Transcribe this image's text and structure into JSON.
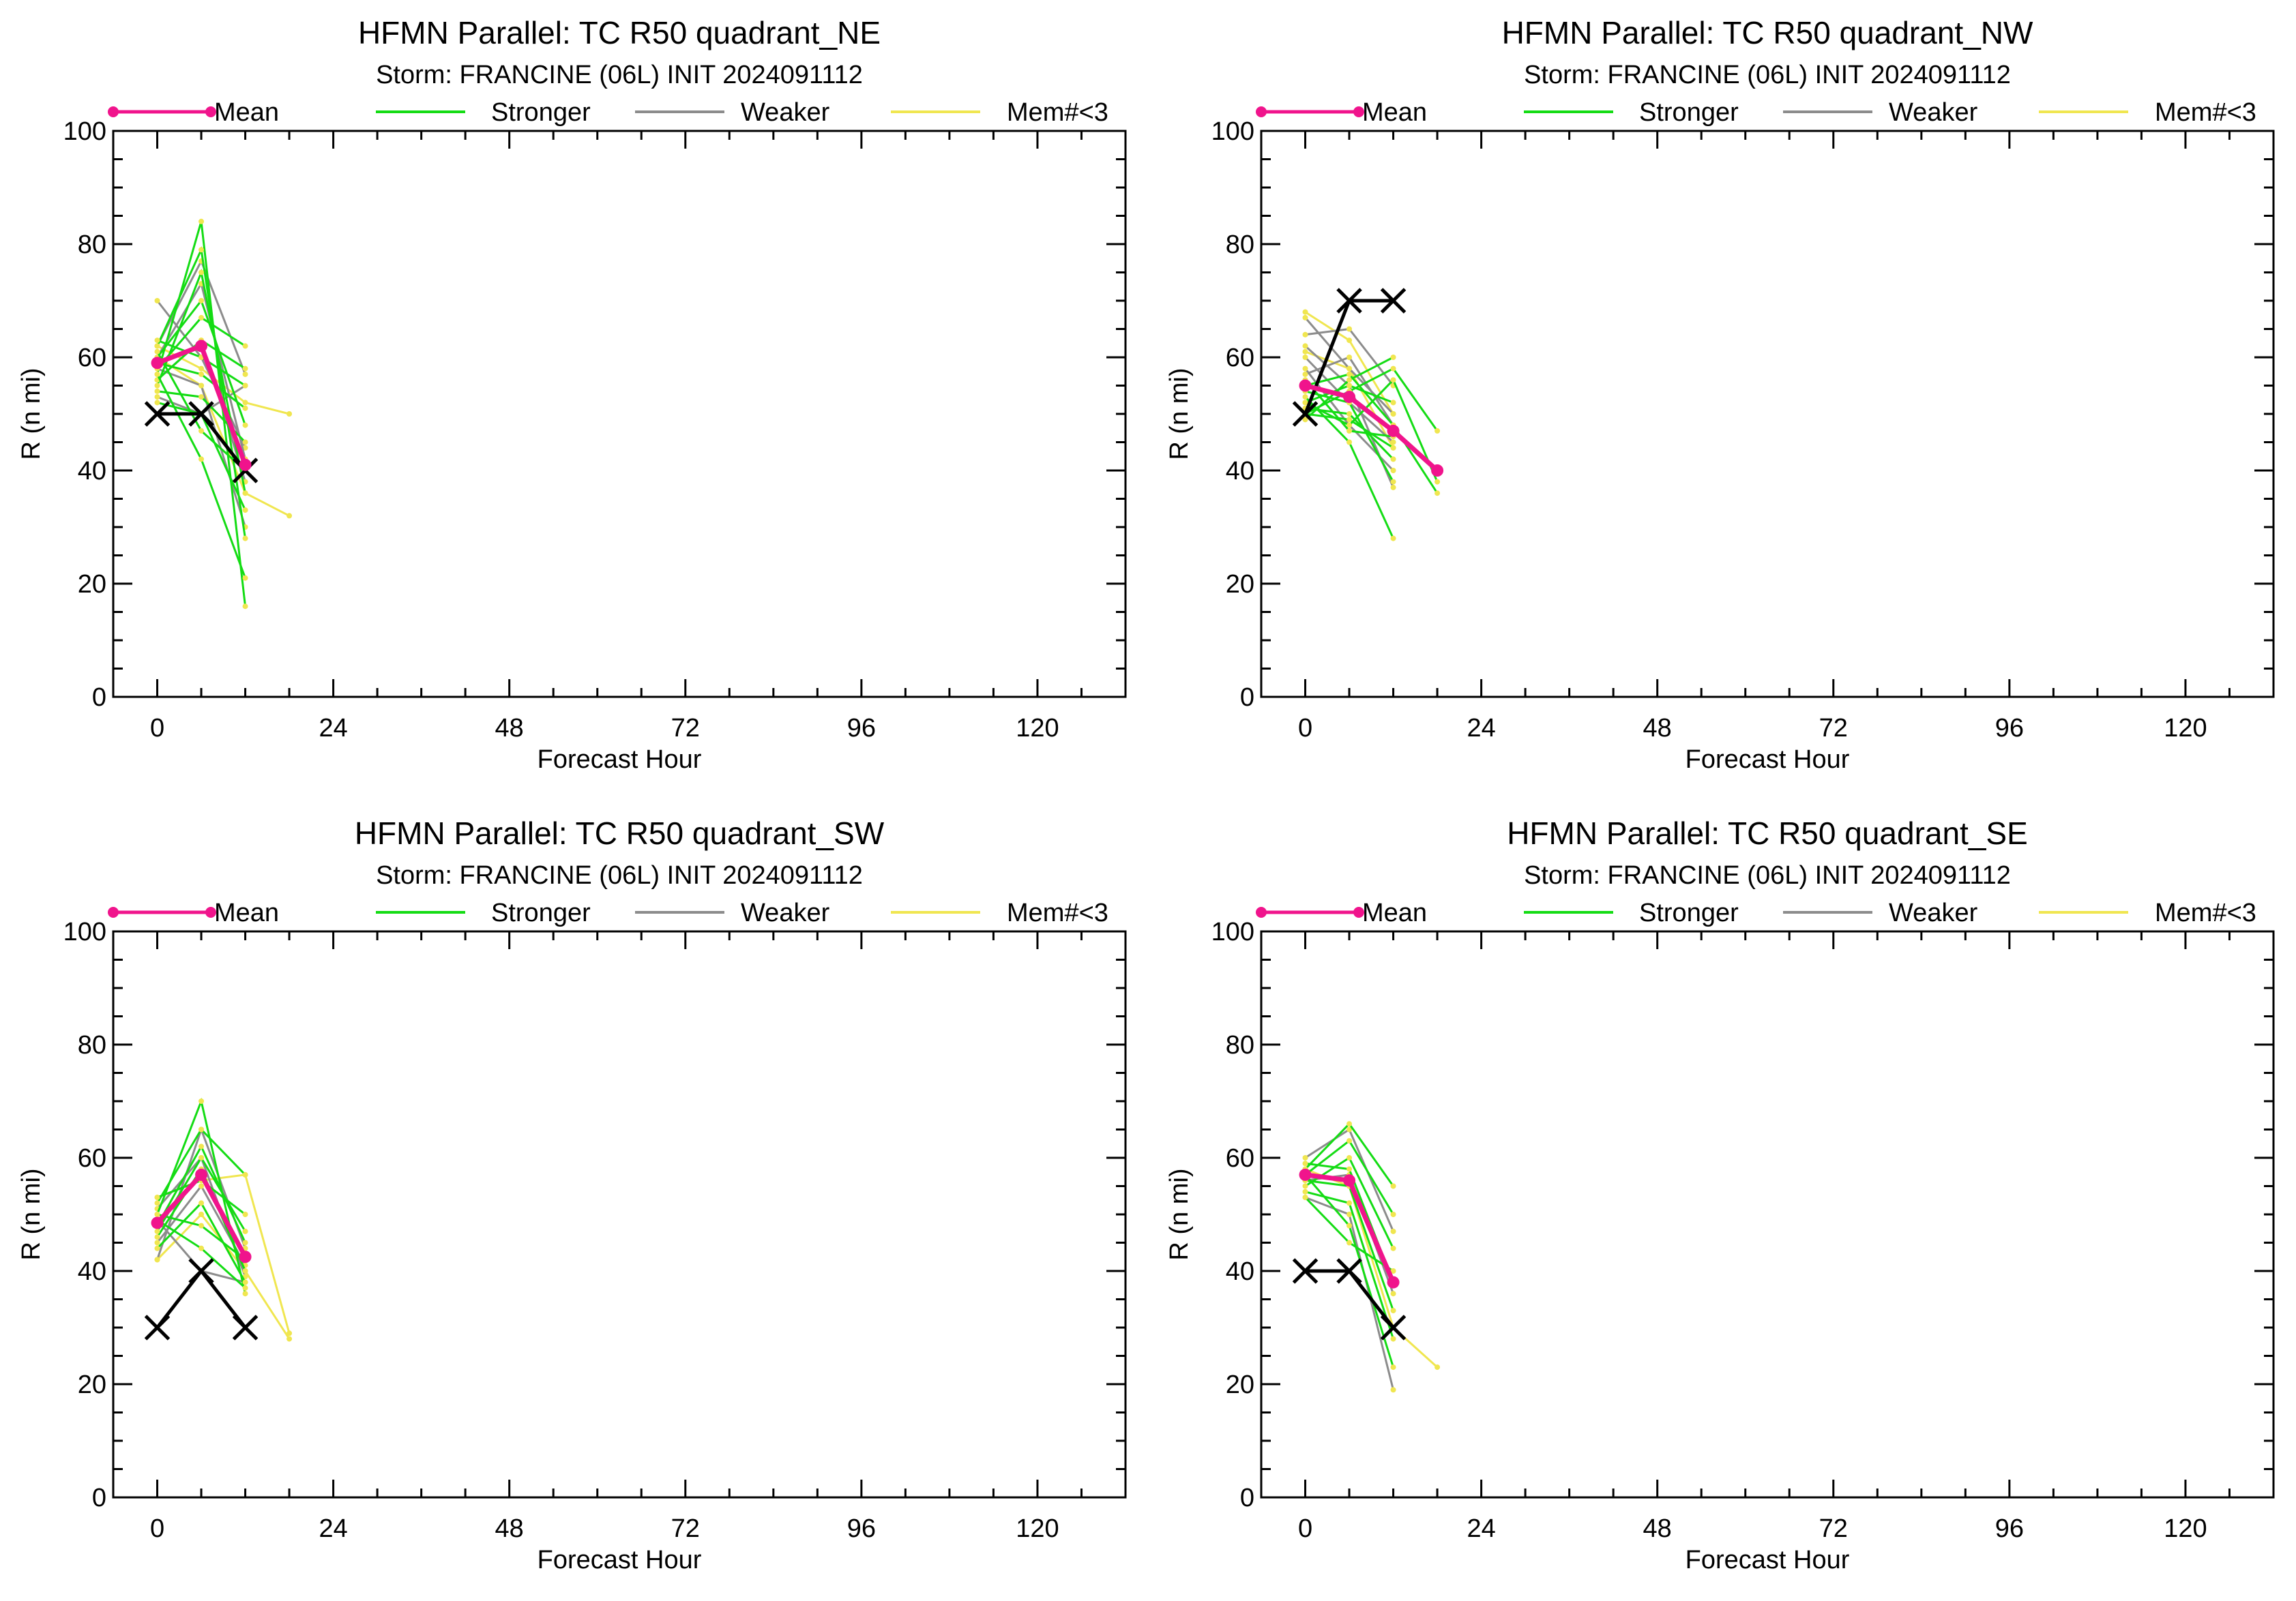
{
  "colors": {
    "mean": "#f0148c",
    "stronger": "#14dc14",
    "weaker": "#8c8c8c",
    "mem": "#f0e650",
    "best_track": "#000000"
  },
  "chart_data": [
    {
      "type": "line",
      "title": "HFMN Parallel: TC  R50 quadrant_NE",
      "subtitle": "Storm: FRANCINE (06L) INIT 2024091112",
      "xlabel": "Forecast Hour",
      "ylabel": "R (n mi)",
      "xlim": [
        -6,
        132
      ],
      "ylim": [
        0,
        100
      ],
      "xticks": [
        0,
        24,
        48,
        72,
        96,
        120
      ],
      "yticks": [
        0,
        20,
        40,
        60,
        80,
        100
      ],
      "legend": [
        {
          "key": "mean",
          "label": "Mean"
        },
        {
          "key": "stronger",
          "label": "Stronger"
        },
        {
          "key": "weaker",
          "label": "Weaker"
        },
        {
          "key": "mem",
          "label": "Mem#<3"
        }
      ],
      "members": [
        {
          "group": "stronger",
          "x": [
            0,
            6,
            12
          ],
          "y": [
            57,
            84,
            16
          ]
        },
        {
          "group": "stronger",
          "x": [
            0,
            6,
            12
          ],
          "y": [
            62,
            79,
            28
          ]
        },
        {
          "group": "stronger",
          "x": [
            0,
            6,
            12
          ],
          "y": [
            55,
            75,
            36
          ]
        },
        {
          "group": "stronger",
          "x": [
            0,
            6,
            12
          ],
          "y": [
            60,
            70,
            48
          ]
        },
        {
          "group": "stronger",
          "x": [
            0,
            6,
            12
          ],
          "y": [
            58,
            67,
            62
          ]
        },
        {
          "group": "stronger",
          "x": [
            0,
            6,
            12
          ],
          "y": [
            56,
            63,
            58
          ]
        },
        {
          "group": "stronger",
          "x": [
            0,
            6,
            12
          ],
          "y": [
            59,
            57,
            51
          ]
        },
        {
          "group": "stronger",
          "x": [
            0,
            6,
            12
          ],
          "y": [
            54,
            53,
            45
          ]
        },
        {
          "group": "stronger",
          "x": [
            0,
            6,
            12
          ],
          "y": [
            61,
            47,
            40
          ]
        },
        {
          "group": "stronger",
          "x": [
            0,
            6,
            12
          ],
          "y": [
            57,
            42,
            21
          ]
        },
        {
          "group": "stronger",
          "x": [
            0,
            6,
            12
          ],
          "y": [
            63,
            60,
            55
          ]
        },
        {
          "group": "stronger",
          "x": [
            0,
            6,
            12
          ],
          "y": [
            52,
            50,
            33
          ]
        },
        {
          "group": "weaker",
          "x": [
            0,
            6,
            12
          ],
          "y": [
            70,
            60,
            44
          ]
        },
        {
          "group": "weaker",
          "x": [
            0,
            6,
            12
          ],
          "y": [
            62,
            77,
            57
          ]
        },
        {
          "group": "weaker",
          "x": [
            0,
            6,
            12
          ],
          "y": [
            60,
            73,
            42
          ]
        },
        {
          "group": "weaker",
          "x": [
            0,
            6,
            12
          ],
          "y": [
            56,
            63,
            38
          ]
        },
        {
          "group": "weaker",
          "x": [
            0,
            6,
            12
          ],
          "y": [
            58,
            55,
            30
          ]
        },
        {
          "group": "weaker",
          "x": [
            0,
            6,
            12
          ],
          "y": [
            53,
            50,
            55
          ]
        },
        {
          "group": "mem",
          "x": [
            0,
            6,
            12,
            18
          ],
          "y": [
            62,
            58,
            52,
            50
          ]
        },
        {
          "group": "mem",
          "x": [
            0,
            6,
            12,
            18
          ],
          "y": [
            60,
            55,
            36,
            32
          ]
        }
      ],
      "mean": {
        "x": [
          0,
          6,
          12
        ],
        "y": [
          59,
          62,
          41
        ]
      },
      "best_track": {
        "x": [
          0,
          6,
          12
        ],
        "y": [
          50,
          50,
          40
        ]
      }
    },
    {
      "type": "line",
      "title": "HFMN Parallel: TC  R50 quadrant_NW",
      "subtitle": "Storm: FRANCINE (06L) INIT 2024091112",
      "xlabel": "Forecast Hour",
      "ylabel": "R (n mi)",
      "xlim": [
        -6,
        132
      ],
      "ylim": [
        0,
        100
      ],
      "xticks": [
        0,
        24,
        48,
        72,
        96,
        120
      ],
      "yticks": [
        0,
        20,
        40,
        60,
        80,
        100
      ],
      "legend": [
        {
          "key": "mean",
          "label": "Mean"
        },
        {
          "key": "stronger",
          "label": "Stronger"
        },
        {
          "key": "weaker",
          "label": "Weaker"
        },
        {
          "key": "mem",
          "label": "Mem#<3"
        }
      ],
      "members": [
        {
          "group": "stronger",
          "x": [
            0,
            6,
            12,
            18
          ],
          "y": [
            50,
            54,
            58,
            47
          ]
        },
        {
          "group": "stronger",
          "x": [
            0,
            6,
            12,
            18
          ],
          "y": [
            52,
            48,
            56,
            38
          ]
        },
        {
          "group": "stronger",
          "x": [
            0,
            6,
            12,
            18
          ],
          "y": [
            55,
            57,
            48,
            36
          ]
        },
        {
          "group": "stronger",
          "x": [
            0,
            6,
            12
          ],
          "y": [
            53,
            45,
            28
          ]
        },
        {
          "group": "stronger",
          "x": [
            0,
            6,
            12
          ],
          "y": [
            51,
            50,
            42
          ]
        },
        {
          "group": "stronger",
          "x": [
            0,
            6,
            12
          ],
          "y": [
            54,
            52,
            38
          ]
        },
        {
          "group": "stronger",
          "x": [
            0,
            6,
            12
          ],
          "y": [
            49,
            56,
            60
          ]
        },
        {
          "group": "stronger",
          "x": [
            0,
            6,
            12
          ],
          "y": [
            56,
            47,
            46
          ]
        },
        {
          "group": "stronger",
          "x": [
            0,
            6,
            12
          ],
          "y": [
            52,
            55,
            52
          ]
        },
        {
          "group": "stronger",
          "x": [
            0,
            6,
            12
          ],
          "y": [
            50,
            49,
            44
          ]
        },
        {
          "group": "weaker",
          "x": [
            0,
            6,
            12
          ],
          "y": [
            67,
            58,
            50
          ]
        },
        {
          "group": "weaker",
          "x": [
            0,
            6,
            12
          ],
          "y": [
            64,
            65,
            55
          ]
        },
        {
          "group": "weaker",
          "x": [
            0,
            6,
            12
          ],
          "y": [
            62,
            55,
            37
          ]
        },
        {
          "group": "weaker",
          "x": [
            0,
            6,
            12
          ],
          "y": [
            60,
            52,
            45
          ]
        },
        {
          "group": "weaker",
          "x": [
            0,
            6,
            12
          ],
          "y": [
            58,
            48,
            40
          ]
        },
        {
          "group": "weaker",
          "x": [
            0,
            6,
            12
          ],
          "y": [
            57,
            60,
            48
          ]
        },
        {
          "group": "mem",
          "x": [
            0,
            6,
            12
          ],
          "y": [
            68,
            63,
            50
          ]
        },
        {
          "group": "mem",
          "x": [
            0,
            6,
            12
          ],
          "y": [
            61,
            58,
            44
          ]
        }
      ],
      "mean": {
        "x": [
          0,
          6,
          12,
          18
        ],
        "y": [
          55,
          53,
          47,
          40
        ]
      },
      "best_track": {
        "x": [
          0,
          6,
          12
        ],
        "y": [
          50,
          70,
          70
        ]
      }
    },
    {
      "type": "line",
      "title": "HFMN Parallel: TC  R50 quadrant_SW",
      "subtitle": "Storm: FRANCINE (06L) INIT 2024091112",
      "xlabel": "Forecast Hour",
      "ylabel": "R (n mi)",
      "xlim": [
        -6,
        132
      ],
      "ylim": [
        0,
        100
      ],
      "xticks": [
        0,
        24,
        48,
        72,
        96,
        120
      ],
      "yticks": [
        0,
        20,
        40,
        60,
        80,
        100
      ],
      "legend": [
        {
          "key": "mean",
          "label": "Mean"
        },
        {
          "key": "stronger",
          "label": "Stronger"
        },
        {
          "key": "weaker",
          "label": "Weaker"
        },
        {
          "key": "mem",
          "label": "Mem#<3"
        }
      ],
      "members": [
        {
          "group": "stronger",
          "x": [
            0,
            6,
            12
          ],
          "y": [
            50,
            70,
            36
          ]
        },
        {
          "group": "stronger",
          "x": [
            0,
            6,
            12
          ],
          "y": [
            52,
            65,
            57
          ]
        },
        {
          "group": "stronger",
          "x": [
            0,
            6,
            12
          ],
          "y": [
            48,
            62,
            45
          ]
        },
        {
          "group": "stronger",
          "x": [
            0,
            6,
            12
          ],
          "y": [
            46,
            58,
            40
          ]
        },
        {
          "group": "stronger",
          "x": [
            0,
            6,
            12
          ],
          "y": [
            53,
            56,
            50
          ]
        },
        {
          "group": "stronger",
          "x": [
            0,
            6,
            12
          ],
          "y": [
            44,
            52,
            38
          ]
        },
        {
          "group": "stronger",
          "x": [
            0,
            6,
            12
          ],
          "y": [
            50,
            48,
            42
          ]
        },
        {
          "group": "stronger",
          "x": [
            0,
            6,
            12
          ],
          "y": [
            49,
            44,
            37
          ]
        },
        {
          "group": "stronger",
          "x": [
            0,
            6,
            12
          ],
          "y": [
            47,
            60,
            47
          ]
        },
        {
          "group": "weaker",
          "x": [
            0,
            6,
            12
          ],
          "y": [
            42,
            65,
            44
          ]
        },
        {
          "group": "weaker",
          "x": [
            0,
            6,
            12
          ],
          "y": [
            51,
            60,
            39
          ]
        },
        {
          "group": "weaker",
          "x": [
            0,
            6,
            12
          ],
          "y": [
            45,
            55,
            41
          ]
        },
        {
          "group": "weaker",
          "x": [
            0,
            6,
            12
          ],
          "y": [
            49,
            40,
            38
          ]
        },
        {
          "group": "mem",
          "x": [
            0,
            6,
            12,
            18
          ],
          "y": [
            53,
            56,
            57,
            29
          ]
        },
        {
          "group": "mem",
          "x": [
            0,
            6,
            12,
            18
          ],
          "y": [
            42,
            50,
            40,
            28
          ]
        }
      ],
      "mean": {
        "x": [
          0,
          6,
          12
        ],
        "y": [
          48.5,
          57,
          42.5
        ]
      },
      "best_track": {
        "x": [
          0,
          6,
          12
        ],
        "y": [
          30,
          40,
          30
        ]
      }
    },
    {
      "type": "line",
      "title": "HFMN Parallel: TC  R50 quadrant_SE",
      "subtitle": "Storm: FRANCINE (06L) INIT 2024091112",
      "xlabel": "Forecast Hour",
      "ylabel": "R (n mi)",
      "xlim": [
        -6,
        132
      ],
      "ylim": [
        0,
        100
      ],
      "xticks": [
        0,
        24,
        48,
        72,
        96,
        120
      ],
      "yticks": [
        0,
        20,
        40,
        60,
        80,
        100
      ],
      "legend": [
        {
          "key": "mean",
          "label": "Mean"
        },
        {
          "key": "stronger",
          "label": "Stronger"
        },
        {
          "key": "weaker",
          "label": "Weaker"
        },
        {
          "key": "mem",
          "label": "Mem#<3"
        }
      ],
      "members": [
        {
          "group": "stronger",
          "x": [
            0,
            6,
            12
          ],
          "y": [
            58,
            66,
            55
          ]
        },
        {
          "group": "stronger",
          "x": [
            0,
            6,
            12
          ],
          "y": [
            57,
            63,
            50
          ]
        },
        {
          "group": "stronger",
          "x": [
            0,
            6,
            12
          ],
          "y": [
            55,
            60,
            44
          ]
        },
        {
          "group": "stronger",
          "x": [
            0,
            6,
            12
          ],
          "y": [
            59,
            58,
            38
          ]
        },
        {
          "group": "stronger",
          "x": [
            0,
            6,
            12
          ],
          "y": [
            56,
            55,
            33
          ]
        },
        {
          "group": "stronger",
          "x": [
            0,
            6,
            12
          ],
          "y": [
            54,
            52,
            28
          ]
        },
        {
          "group": "stronger",
          "x": [
            0,
            6,
            12
          ],
          "y": [
            57,
            48,
            23
          ]
        },
        {
          "group": "stronger",
          "x": [
            0,
            6,
            12
          ],
          "y": [
            53,
            45,
            40
          ]
        },
        {
          "group": "weaker",
          "x": [
            0,
            6,
            12
          ],
          "y": [
            60,
            65,
            47
          ]
        },
        {
          "group": "weaker",
          "x": [
            0,
            6,
            12
          ],
          "y": [
            56,
            57,
            36
          ]
        },
        {
          "group": "weaker",
          "x": [
            0,
            6,
            12
          ],
          "y": [
            53,
            50,
            19
          ]
        },
        {
          "group": "mem",
          "x": [
            0,
            6,
            12,
            18
          ],
          "y": [
            58,
            55,
            30,
            23
          ]
        }
      ],
      "mean": {
        "x": [
          0,
          6,
          12
        ],
        "y": [
          57,
          56,
          38
        ]
      },
      "best_track": {
        "x": [
          0,
          6,
          12
        ],
        "y": [
          40,
          40,
          30
        ]
      }
    }
  ]
}
